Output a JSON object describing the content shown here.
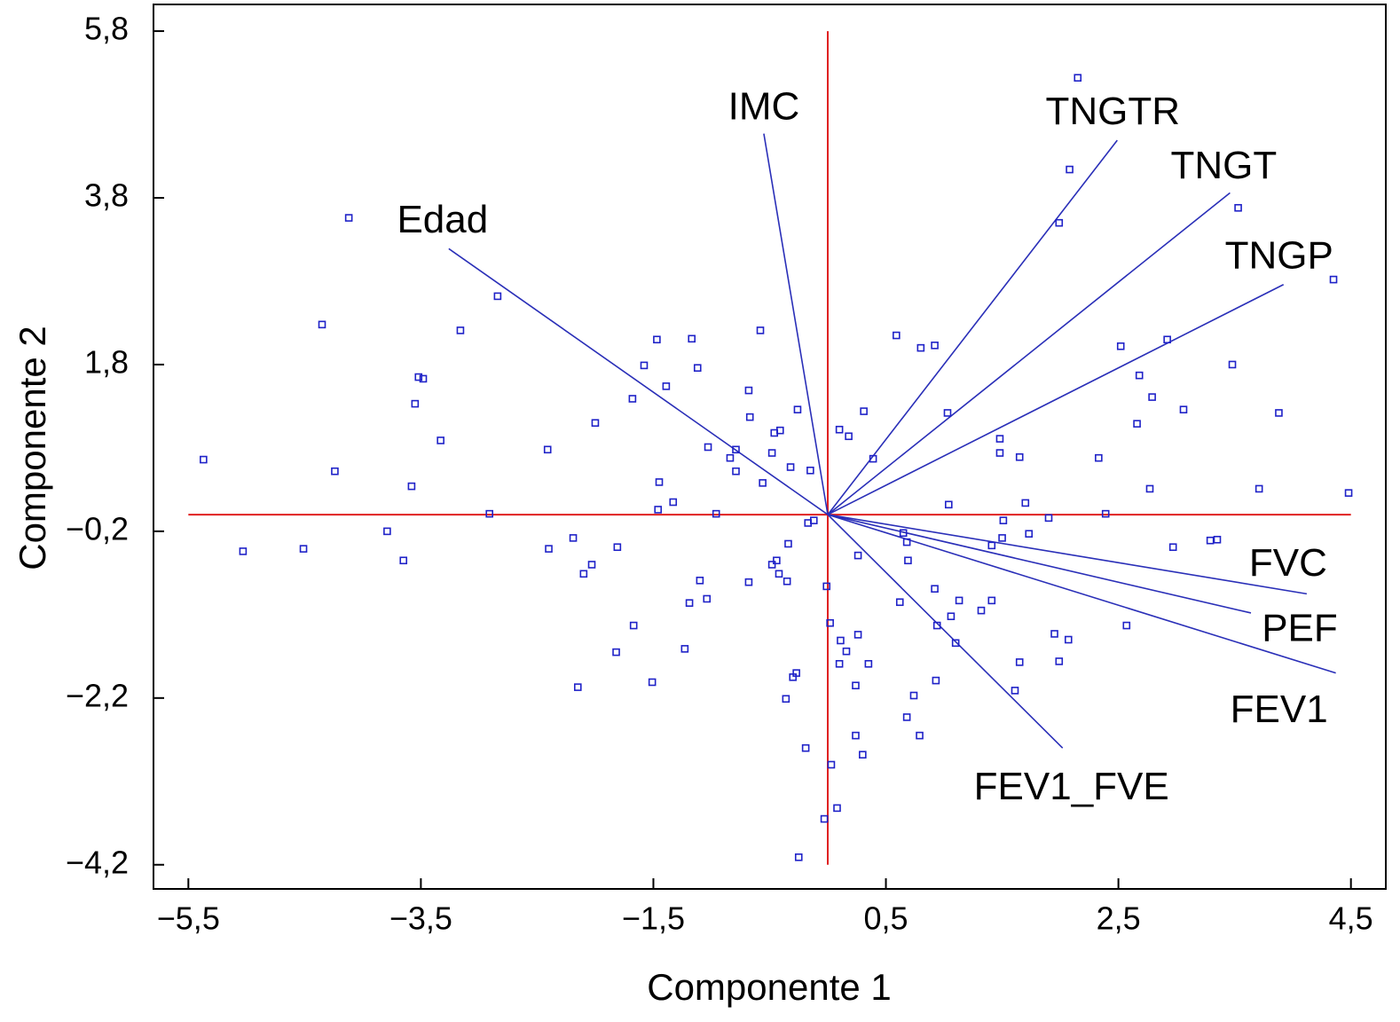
{
  "chart_data": {
    "type": "biplot",
    "xlabel": "Componente 1",
    "ylabel": "Componente 2",
    "xlim": [
      -5.8,
      4.8
    ],
    "ylim": [
      -4.49,
      6.12
    ],
    "xticks": [
      {
        "value": -5.5,
        "label": "−5,5"
      },
      {
        "value": -3.5,
        "label": "−3,5"
      },
      {
        "value": -1.5,
        "label": "−1,5"
      },
      {
        "value": 0.5,
        "label": "0,5"
      },
      {
        "value": 2.5,
        "label": "2,5"
      },
      {
        "value": 4.5,
        "label": "4,5"
      }
    ],
    "yticks": [
      {
        "value": -4.2,
        "label": "−4,2"
      },
      {
        "value": -2.2,
        "label": "−2,2"
      },
      {
        "value": -0.2,
        "label": "−0,2"
      },
      {
        "value": 1.8,
        "label": "1,8"
      },
      {
        "value": 3.8,
        "label": "3,8"
      },
      {
        "value": 5.8,
        "label": "5,8"
      }
    ],
    "point_color": "#1f22c8",
    "vector_color": "#2a2fb8",
    "axis_line_color": "#e02020",
    "x": [
      -5.37,
      -5.03,
      -4.51,
      -4.35,
      -4.12,
      -4.24,
      -3.79,
      -3.65,
      -3.58,
      -3.55,
      -3.52,
      -3.48,
      -3.33,
      -3.16,
      -2.91,
      -2.84,
      -2.41,
      -2.4,
      -2.19,
      -2.15,
      -2.1,
      -2.03,
      -2.0,
      -1.81,
      -1.82,
      -1.68,
      -1.67,
      -1.58,
      -1.51,
      -1.47,
      -1.45,
      -1.46,
      -1.39,
      -1.33,
      -1.23,
      -1.19,
      -1.17,
      -1.12,
      -1.1,
      -1.04,
      -1.03,
      -0.96,
      -0.84,
      -0.79,
      -0.79,
      -0.68,
      -0.68,
      -0.67,
      -0.58,
      -0.56,
      -0.48,
      -0.48,
      -0.46,
      -0.42,
      -0.41,
      -0.44,
      -0.35,
      -0.34,
      -0.32,
      -0.36,
      -0.3,
      -0.27,
      -0.26,
      -0.25,
      -0.19,
      -0.17,
      -0.15,
      -0.12,
      -0.01,
      -0.03,
      0.02,
      0.03,
      0.08,
      0.1,
      0.1,
      0.11,
      0.16,
      0.18,
      0.24,
      0.24,
      0.26,
      0.26,
      0.3,
      0.31,
      0.35,
      0.39,
      0.59,
      0.62,
      0.65,
      0.68,
      0.68,
      0.69,
      0.74,
      0.79,
      0.8,
      0.92,
      0.93,
      0.92,
      0.94,
      1.03,
      1.04,
      1.06,
      1.1,
      1.13,
      1.32,
      1.41,
      1.41,
      1.48,
      1.48,
      1.5,
      1.51,
      1.61,
      1.65,
      1.65,
      1.7,
      1.73,
      1.9,
      1.95,
      1.99,
      1.99,
      2.07,
      2.08,
      2.15,
      2.33,
      2.39,
      2.52,
      2.57,
      2.66,
      2.68,
      2.77,
      2.79,
      2.92,
      2.97,
      3.06,
      3.29,
      3.35,
      3.48,
      3.53,
      3.71,
      3.88,
      4.35,
      4.48
    ],
    "values": [
      0.66,
      -0.44,
      -0.41,
      2.28,
      3.56,
      0.52,
      -0.2,
      -0.55,
      0.34,
      1.33,
      1.65,
      1.63,
      0.89,
      2.21,
      0.01,
      2.62,
      0.78,
      -0.41,
      -0.28,
      -2.07,
      -0.71,
      -0.6,
      1.1,
      -0.39,
      -1.65,
      1.39,
      -1.33,
      1.79,
      -2.01,
      2.1,
      0.39,
      0.06,
      1.54,
      0.15,
      -1.61,
      -1.06,
      2.11,
      1.76,
      -0.79,
      -1.01,
      0.81,
      0.01,
      0.68,
      0.78,
      0.52,
      -0.81,
      1.49,
      1.17,
      2.21,
      0.38,
      -0.6,
      0.74,
      0.98,
      -0.71,
      1.01,
      -0.55,
      -0.8,
      -0.35,
      0.57,
      -2.21,
      -1.95,
      -1.9,
      1.26,
      -4.11,
      -2.8,
      -0.1,
      0.53,
      -0.07,
      -0.86,
      -3.65,
      -1.3,
      -3.0,
      -3.52,
      1.02,
      -1.79,
      -1.51,
      -1.64,
      0.94,
      -2.05,
      -2.65,
      -0.49,
      -1.44,
      -2.88,
      1.24,
      -1.79,
      0.67,
      2.15,
      -1.05,
      -0.22,
      -2.43,
      -0.33,
      -0.55,
      -2.17,
      -2.65,
      2.0,
      2.03,
      -1.99,
      -0.89,
      -1.33,
      1.22,
      0.12,
      -1.22,
      -1.54,
      -1.03,
      -1.15,
      -1.03,
      -0.37,
      0.91,
      0.74,
      -0.28,
      -0.07,
      -2.11,
      -1.77,
      0.69,
      0.14,
      -0.23,
      -0.04,
      -1.43,
      -1.76,
      3.5,
      -1.5,
      4.14,
      5.24,
      0.68,
      0.01,
      2.02,
      -1.33,
      1.09,
      1.67,
      0.31,
      1.41,
      2.1,
      -0.39,
      1.26,
      -0.31,
      -0.3,
      1.8,
      3.68,
      0.31,
      1.22,
      2.82,
      0.26
    ],
    "vectors": [
      {
        "label": "Edad",
        "x": -3.26,
        "y": 3.19
      },
      {
        "label": "IMC",
        "x": -0.55,
        "y": 4.57
      },
      {
        "label": "TNGTR",
        "x": 2.49,
        "y": 4.49
      },
      {
        "label": "TNGT",
        "x": 3.46,
        "y": 3.86
      },
      {
        "label": "TNGP",
        "x": 3.92,
        "y": 2.76
      },
      {
        "label": "FVC",
        "x": 4.12,
        "y": -0.95
      },
      {
        "label": "PEF",
        "x": 3.64,
        "y": -1.18
      },
      {
        "label": "FEV1",
        "x": 4.37,
        "y": -1.9
      },
      {
        "label": "FEV1_FVE",
        "x": 2.02,
        "y": -2.8
      }
    ]
  }
}
